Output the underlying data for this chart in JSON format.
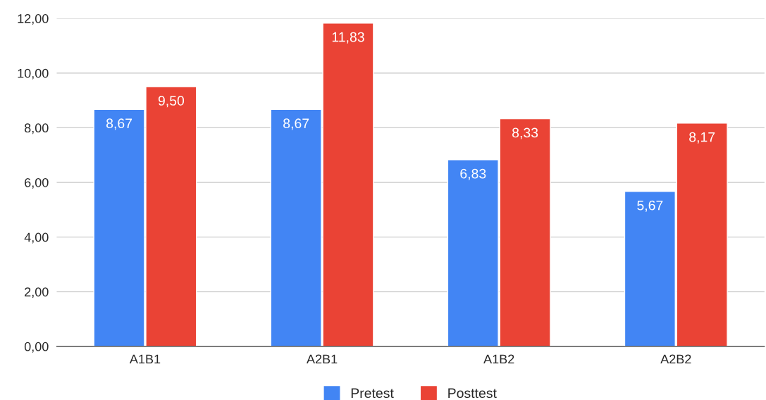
{
  "chart_data": {
    "type": "bar",
    "categories": [
      "A1B1",
      "A2B1",
      "A1B2",
      "A2B2"
    ],
    "series": [
      {
        "name": "Pretest",
        "color": "#4285f4",
        "values": [
          8.67,
          8.67,
          6.83,
          5.67
        ],
        "value_labels": [
          "8,67",
          "8,67",
          "6,83",
          "5,67"
        ]
      },
      {
        "name": "Posttest",
        "color": "#ea4335",
        "values": [
          9.5,
          11.83,
          8.33,
          8.17
        ],
        "value_labels": [
          "9,50",
          "11,83",
          "8,33",
          "8,17"
        ]
      }
    ],
    "ylim": [
      0,
      12
    ],
    "yticks": [
      {
        "value": 0,
        "label": "0,00"
      },
      {
        "value": 2,
        "label": "2,00"
      },
      {
        "value": 4,
        "label": "4,00"
      },
      {
        "value": 6,
        "label": "6,00"
      },
      {
        "value": 8,
        "label": "8,00"
      },
      {
        "value": 10,
        "label": "10,00"
      },
      {
        "value": 12,
        "label": "12,00"
      }
    ],
    "grid": "y",
    "legend": "bottom"
  }
}
